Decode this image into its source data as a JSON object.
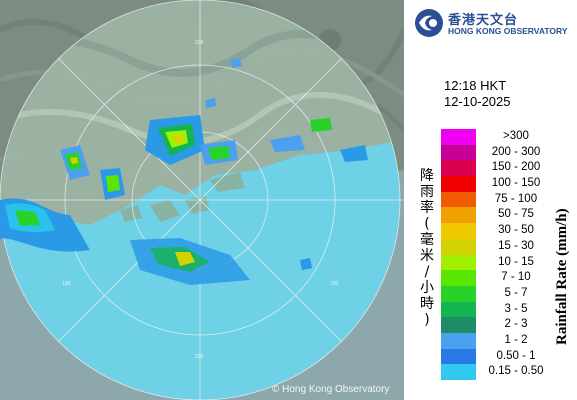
{
  "header": {
    "org_name_chinese": "香港天文台",
    "org_name_english": "HONG KONG OBSERVATORY",
    "logo_icon": "hko-logo-icon"
  },
  "timestamp": {
    "time": "12:18 HKT",
    "date": "12-10-2025"
  },
  "legend": {
    "title_chinese": "降雨率(毫米/小時)",
    "title_english": "Rainfall Rate (mm/h)",
    "items": [
      {
        "label": ">300",
        "color": "#f000f0"
      },
      {
        "label": "200 - 300",
        "color": "#c80096"
      },
      {
        "label": "150 - 200",
        "color": "#dc0050"
      },
      {
        "label": "100 - 150",
        "color": "#f00000"
      },
      {
        "label": "75 - 100",
        "color": "#f05a00"
      },
      {
        "label": "50 - 75",
        "color": "#f0a000"
      },
      {
        "label": "30 - 50",
        "color": "#f0c800"
      },
      {
        "label": "15 - 30",
        "color": "#d2d200"
      },
      {
        "label": "10 - 15",
        "color": "#a0f000"
      },
      {
        "label": "7 - 10",
        "color": "#5ae600"
      },
      {
        "label": "5 - 7",
        "color": "#28d228"
      },
      {
        "label": "3 - 5",
        "color": "#14b450"
      },
      {
        "label": "2 - 3",
        "color": "#1e8c64"
      },
      {
        "label": "1 - 2",
        "color": "#4ba0f0"
      },
      {
        "label": "0.50 - 1",
        "color": "#2878e6"
      },
      {
        "label": "0.15 - 0.50",
        "color": "#32c8f0"
      }
    ]
  },
  "radar": {
    "range_ring_label": "100",
    "copyright": "© Hong Kong Observatory"
  }
}
